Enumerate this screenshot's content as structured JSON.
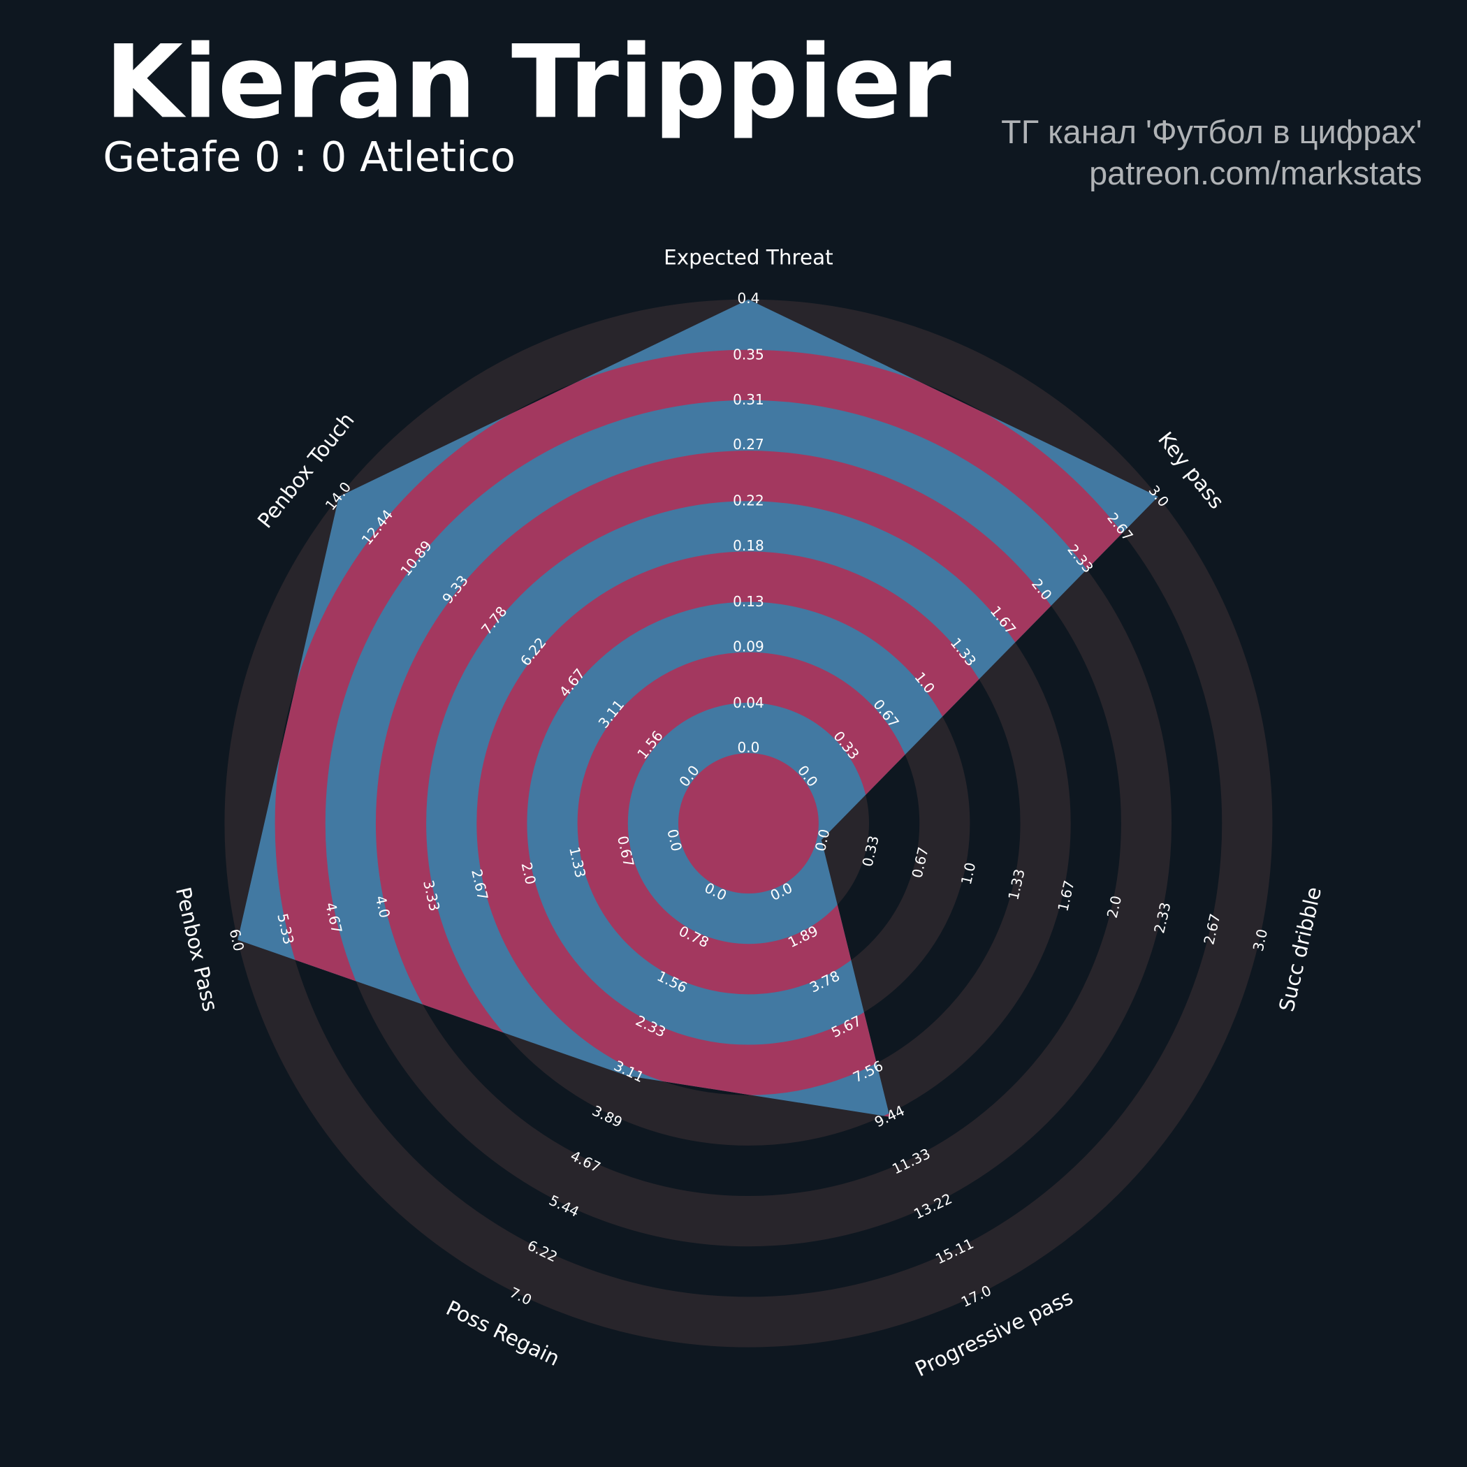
{
  "chart_data": {
    "type": "radar",
    "title": "Kieran Trippier",
    "subtitle": "Getafe 0 : 0 Atletico",
    "credits": [
      "ТГ канал 'Футбол в цифрах'",
      "patreon.com/markstats"
    ],
    "color": "#4279a2",
    "ring_color": "#a3385f",
    "background_ring_color": "#28252b",
    "params": [
      {
        "name": "Expected Threat",
        "lim": [
          0,
          0.4
        ],
        "ticks": [
          {
            "value": 0,
            "label": "0.0"
          },
          0.04,
          0.09,
          0.13,
          0.18,
          0.22,
          0.27,
          0.31,
          0.35,
          0.4
        ]
      },
      {
        "name": "Key pass",
        "lim": [
          0,
          3
        ],
        "ticks": [
          {
            "value": 0,
            "label": "0.0"
          },
          0.33,
          0.67,
          {
            "value": 1,
            "label": "1.0"
          },
          1.33,
          1.67,
          {
            "value": 2,
            "label": "2.0"
          },
          2.33,
          2.67,
          {
            "value": 3,
            "label": "3.0"
          }
        ]
      },
      {
        "name": "Succ dribble",
        "lim": [
          0,
          3
        ],
        "ticks": [
          {
            "value": 0,
            "label": "0.0"
          },
          0.33,
          0.67,
          {
            "value": 1,
            "label": "1.0"
          },
          1.33,
          1.67,
          {
            "value": 2,
            "label": "2.0"
          },
          2.33,
          2.67,
          {
            "value": 3,
            "label": "3.0"
          }
        ]
      },
      {
        "name": "Progressive pass",
        "lim": [
          0,
          17
        ],
        "ticks": [
          {
            "value": 0,
            "label": "0.0"
          },
          1.89,
          3.78,
          5.67,
          7.56,
          9.44,
          11.33,
          13.22,
          15.11,
          {
            "value": 17,
            "label": "17.0"
          }
        ]
      },
      {
        "name": "Poss Regain",
        "lim": [
          0,
          7
        ],
        "ticks": [
          {
            "value": 0,
            "label": "0.0"
          },
          0.78,
          1.56,
          2.33,
          3.11,
          3.89,
          4.67,
          5.44,
          6.22,
          {
            "value": 7,
            "label": "7.0"
          }
        ]
      },
      {
        "name": "Penbox Pass",
        "lim": [
          0,
          6
        ],
        "ticks": [
          {
            "value": 0,
            "label": "0.0"
          },
          0.67,
          1.33,
          {
            "value": 2,
            "label": "2.0"
          },
          2.67,
          3.33,
          {
            "value": 4,
            "label": "4.0"
          },
          4.67,
          5.33,
          {
            "value": 6,
            "label": "6.0"
          }
        ]
      },
      {
        "name": "Penbox Touch",
        "lim": [
          0,
          14
        ],
        "ticks": [
          {
            "value": 0,
            "label": "0.0"
          },
          1.56,
          3.11,
          4.67,
          6.22,
          7.78,
          9.33,
          10.89,
          12.44,
          {
            "value": 14,
            "label": "14.0"
          }
        ]
      }
    ],
    "values": [
      0.4,
      3,
      0,
      9.5,
      3.2,
      6,
      14
    ]
  }
}
